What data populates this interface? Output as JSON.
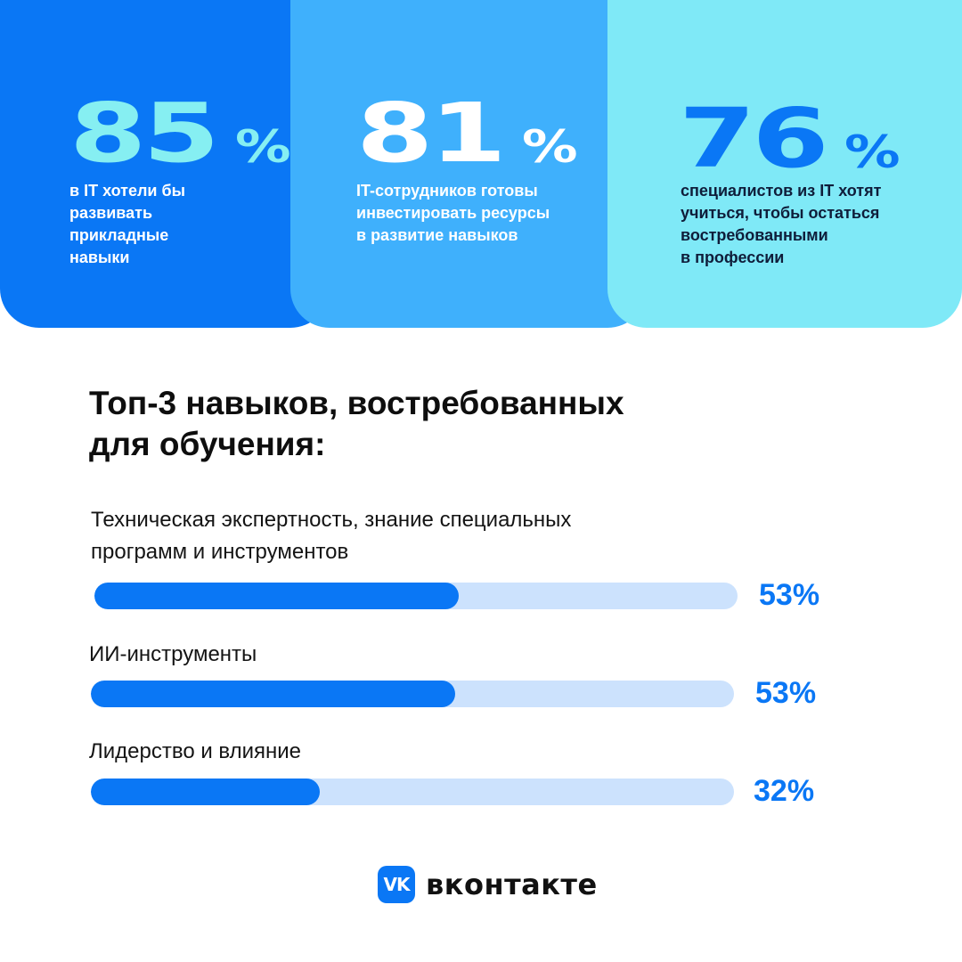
{
  "colors": {
    "card_1_bg": "#0a77f5",
    "card_2_bg": "#3fb0fc",
    "card_3_bg": "#7fe9f7",
    "card_1_num": "#86eff2",
    "card_2_num": "#ffffff",
    "card_3_num": "#0a77f5",
    "card_light_text": "#ffffff",
    "card_dark_text": "#0f1d3a",
    "bar_fill": "#0a77f5",
    "bar_track": "#cce2fd",
    "bar_value": "#0a77f5",
    "logo_bg": "#0a77f5"
  },
  "stats": [
    {
      "number": "85",
      "suffix": "%",
      "lines": [
        "в IT хотели бы",
        "развивать",
        "прикладные",
        "навыки"
      ]
    },
    {
      "number": "81",
      "suffix": "%",
      "lines": [
        "IT-сотрудников готовы",
        "инвестировать ресурсы",
        "в развитие навыков"
      ]
    },
    {
      "number": "76",
      "suffix": "%",
      "lines": [
        "специалистов из IT хотят",
        "учиться, чтобы остаться",
        "востребованными",
        "в профессии"
      ]
    }
  ],
  "heading": {
    "lines": [
      "Топ-3 навыков, востребованных",
      "для обучения:"
    ]
  },
  "chart_data": {
    "type": "bar",
    "orientation": "horizontal",
    "title": "Топ-3 навыков, востребованных для обучения:",
    "categories": [
      "Техническая экспертность, знание специальных программ и инструментов",
      "ИИ-инструменты",
      "Лидерство и влияние"
    ],
    "category_lines": [
      [
        "Техническая экспертность, знание специальных",
        "программ и инструментов"
      ],
      [
        "ИИ-инструменты"
      ],
      [
        "Лидерство и влияние"
      ]
    ],
    "values": [
      53,
      53,
      32
    ],
    "value_labels": [
      "53%",
      "53%",
      "32%"
    ],
    "xlim": [
      0,
      100
    ],
    "grid": false,
    "legend": "none"
  },
  "brand": {
    "logo_text": "VK",
    "name": "вконтакте",
    "logo_icon": "vk-logo-icon"
  }
}
